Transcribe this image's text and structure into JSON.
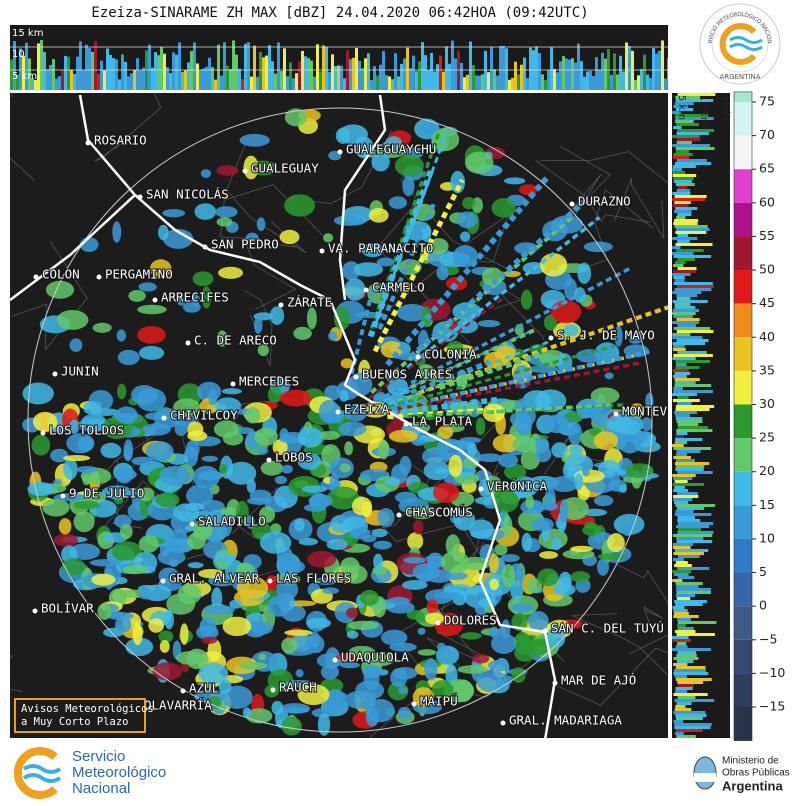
{
  "title": "Ezeiza-SINARAME ZH MAX [dBZ] 24.04.2020 06:42HOA (09:42UTC)",
  "top_strip_labels": [
    "15 km",
    "10",
    "5 km"
  ],
  "side_strip_labels": [
    "5 km",
    "10 km",
    "15 km"
  ],
  "cities": [
    "ROSARIO",
    "GUALEGUAYCHU",
    "GUALEGUAY",
    "SAN NICOLÁS",
    "DURAZNO",
    "SAN PEDRO",
    "VA. PARANACITO",
    "COLON",
    "PERGAMINO",
    "CARMELO",
    "ARRECIFES",
    "ZÁRATE",
    "S. J. DE MAYO",
    "C. DE ARECO",
    "COLONIA",
    "JUNIN",
    "BUENOS AIRES",
    "MERCEDES",
    "MONTEVIDEO",
    "CHIVILCOY",
    "EZEIZA",
    "LA PLATA",
    "LOS TOLDOS",
    "LOBOS",
    "VERÓNICA",
    "9 DE JULIO",
    "CHASCOMÚS",
    "SALADILLO",
    "GRAL. ALVEAR",
    "LAS FLORES",
    "BOLÍVAR",
    "DOLORES",
    "SAN C. DEL TUYÚ",
    "UDAQUIOLA",
    "MAR DE AJÓ",
    "AZUL",
    "RAUCH",
    "MAIPÚ",
    "OLAVARRÍA",
    "GRAL. MADARIAGA"
  ],
  "notice": [
    "Avisos Meteorológicos",
    "a Muy Corto Plazo"
  ],
  "badge": {
    "ring": "SERVICIO METEOROLÓGICO NACIONAL",
    "country": "ARGENTINA"
  },
  "footer": {
    "smn": [
      "Servicio",
      "Meteorológico",
      "Nacional"
    ],
    "ministry": [
      "Ministerio de",
      "Obras Públicas",
      "Argentina"
    ]
  },
  "colorbar": {
    "lim": [
      -20,
      76.5
    ],
    "ticks": [
      75,
      70,
      65,
      60,
      55,
      50,
      45,
      40,
      35,
      30,
      25,
      20,
      15,
      10,
      5,
      0,
      {
        "value": -5,
        "label": "−5"
      },
      {
        "value": -10,
        "label": "−10"
      },
      {
        "value": -15,
        "label": "−15"
      }
    ],
    "colors": [
      "#a8e6cf",
      "#d4f4f4",
      "#f4f4f4",
      "#e040d0",
      "#b0108c",
      "#a01830",
      "#e01818",
      "#f08a1c",
      "#e8c420",
      "#f0f040",
      "#2a9a30",
      "#62c86a",
      "#40b8e8",
      "#3a9ad8",
      "#2f7cc4",
      "#3566a8",
      "#3d5a88",
      "#354a70",
      "#2d3d5c",
      "#27344e"
    ]
  }
}
